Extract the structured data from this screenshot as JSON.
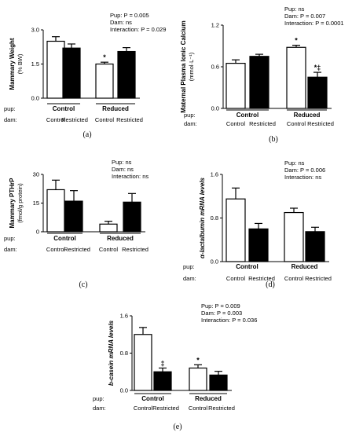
{
  "common": {
    "row_pup": "pup:",
    "row_dam": "dam:",
    "group_control": "Control",
    "group_reduced": "Reduced",
    "dam_control": "Control",
    "dam_restricted": "Restricted",
    "open_bar_color": "#ffffff",
    "filled_bar_color": "#000000"
  },
  "chart_data": [
    {
      "type": "bar",
      "panel_label": "(a)",
      "ylabel": "Mammary Weight",
      "ylabel_unit": "(% BW)",
      "yticks": [
        "0.0",
        "1.5",
        "3.0"
      ],
      "ylim": [
        0,
        3.0
      ],
      "stats": {
        "pup": "Pup: P = 0.005",
        "dam": "Dam: ns",
        "interaction": "Interaction: P = 0.029"
      },
      "categories": [
        "Control Control",
        "Control Restricted",
        "Reduced Control",
        "Reduced Restricted"
      ],
      "values": [
        2.5,
        2.2,
        1.5,
        2.05
      ],
      "errors": [
        0.2,
        0.18,
        0.08,
        0.17
      ],
      "annotations": [
        "",
        "",
        "*",
        ""
      ]
    },
    {
      "type": "bar",
      "panel_label": "(b)",
      "ylabel": "Maternal Plasma Ionic Calcium",
      "ylabel_unit": "(mmol·L⁻¹)",
      "yticks": [
        "0.0",
        "0.6",
        "1.2"
      ],
      "ylim": [
        0,
        1.2
      ],
      "stats": {
        "pup": "Pup: ns",
        "dam": "Dam: P = 0.007",
        "interaction": "Interaction: P = 0.0001"
      },
      "categories": [
        "Control Control",
        "Control Restricted",
        "Reduced Control",
        "Reduced Restricted"
      ],
      "values": [
        0.65,
        0.75,
        0.88,
        0.45
      ],
      "errors": [
        0.05,
        0.03,
        0.03,
        0.07
      ],
      "annotations": [
        "",
        "",
        "*",
        "*‡"
      ]
    },
    {
      "type": "bar",
      "panel_label": "(c)",
      "ylabel": "Mammary PTHrP",
      "ylabel_unit": "(fmol/g protein)",
      "yticks": [
        "0",
        "15",
        "30"
      ],
      "ylim": [
        0,
        30
      ],
      "stats": {
        "pup": "Pup: ns",
        "dam": "Dam: ns",
        "interaction": "Interaction: ns"
      },
      "categories": [
        "Control Control",
        "Control Restricted",
        "Reduced Control",
        "Reduced Restricted"
      ],
      "values": [
        22,
        16,
        4,
        15.5
      ],
      "errors": [
        5,
        5.5,
        1.5,
        4.5
      ],
      "annotations": [
        "",
        "",
        "",
        ""
      ]
    },
    {
      "type": "bar",
      "panel_label": "(d)",
      "ylabel": "α-lactalbumin mRNA levels",
      "ylabel_unit": "",
      "yticks": [
        "0.0",
        "0.8",
        "1.6"
      ],
      "ylim": [
        0,
        1.6
      ],
      "stats": {
        "pup": "Pup: ns",
        "dam": "Dam: P = 0.006",
        "interaction": "Interaction: ns"
      },
      "categories": [
        "Control Control",
        "Control Restricted",
        "Reduced Control",
        "Reduced Restricted"
      ],
      "values": [
        1.15,
        0.6,
        0.9,
        0.55
      ],
      "errors": [
        0.2,
        0.1,
        0.08,
        0.08
      ],
      "annotations": [
        "",
        "",
        "",
        ""
      ]
    },
    {
      "type": "bar",
      "panel_label": "(e)",
      "ylabel": "b-casein mRNA levels",
      "ylabel_unit": "",
      "yticks": [
        "0.0",
        "0.8",
        "1.6"
      ],
      "ylim": [
        0,
        1.6
      ],
      "stats": {
        "pup": "Pup: P = 0.009",
        "dam": "Dam: P = 0.003",
        "interaction": "Interaction: P = 0.036"
      },
      "categories": [
        "Control Control",
        "Control Restricted",
        "Reduced Control",
        "Reduced Restricted"
      ],
      "values": [
        1.2,
        0.4,
        0.48,
        0.33
      ],
      "errors": [
        0.15,
        0.08,
        0.07,
        0.08
      ],
      "annotations": [
        "",
        "‡",
        "*",
        ""
      ]
    }
  ]
}
